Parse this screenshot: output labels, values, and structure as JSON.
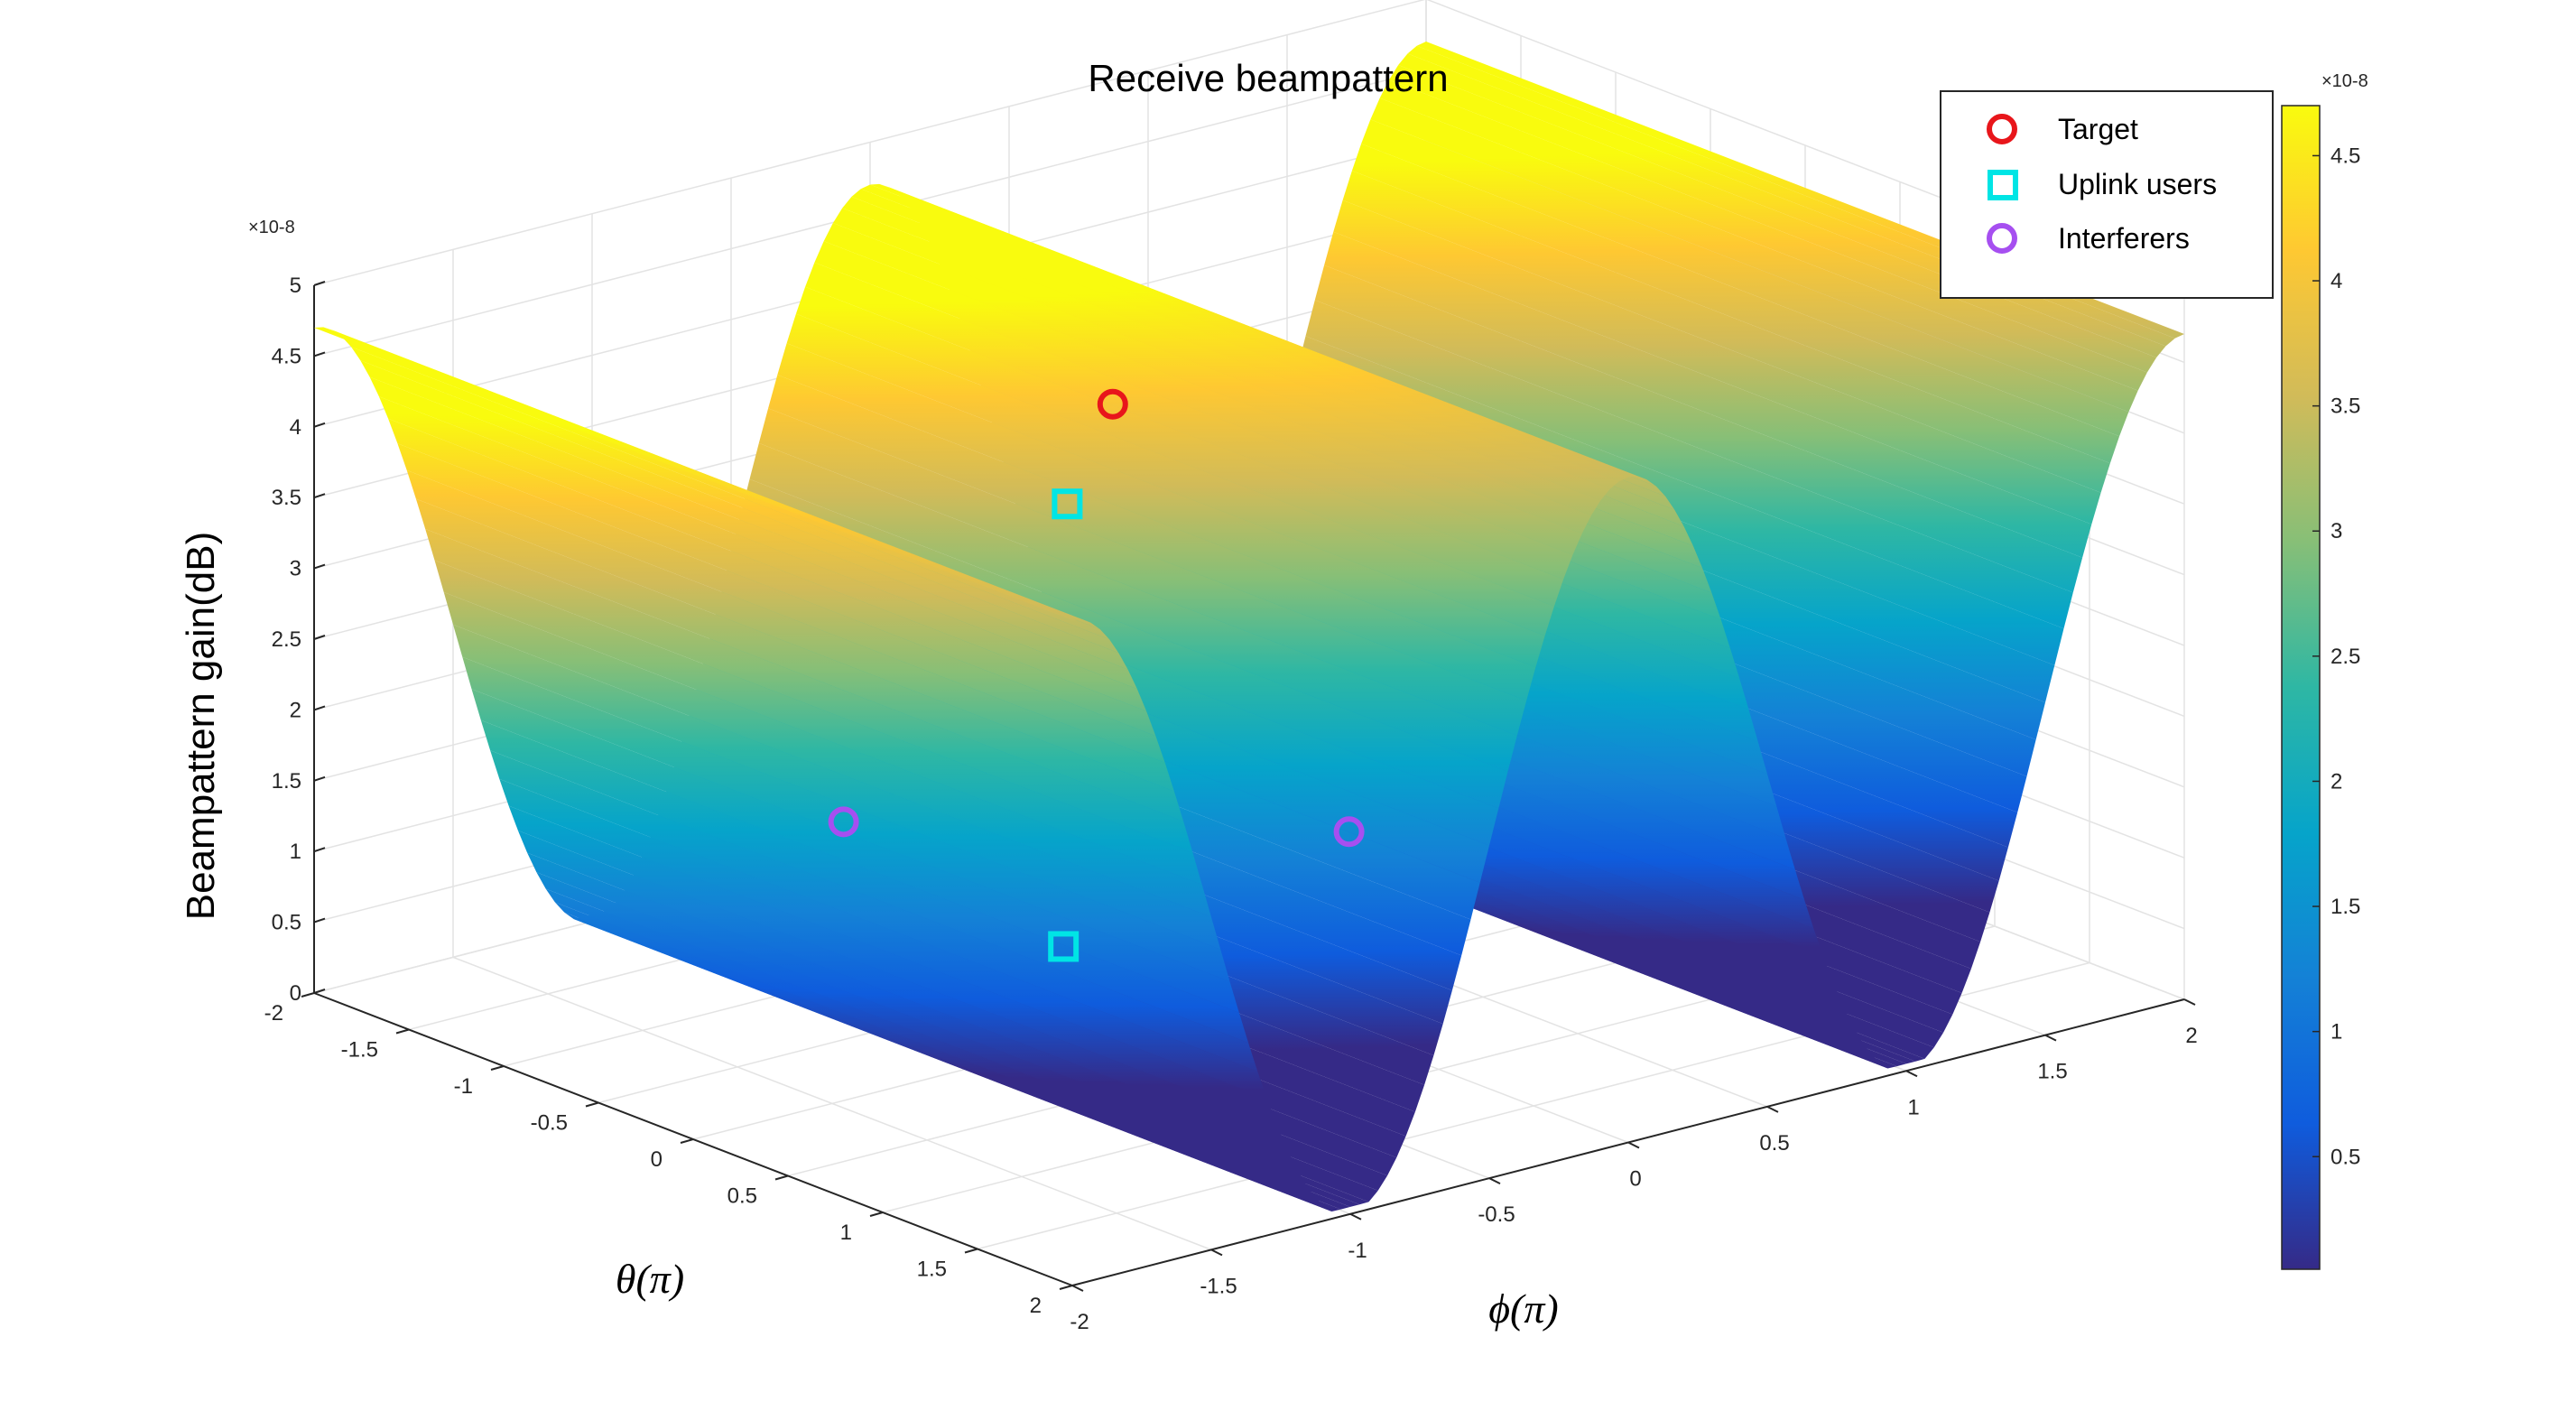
{
  "chart_data": {
    "type": "surface",
    "title": "Receive beampattern",
    "xlabel": "θ(π)",
    "ylabel": "ϕ(π)",
    "zlabel": "Beampattern gain(dB)",
    "xlim": [
      -2,
      2
    ],
    "ylim": [
      -2,
      2
    ],
    "zlim": [
      0,
      5e-08
    ],
    "x_ticks": [
      "-2",
      "-1.5",
      "-1",
      "-0.5",
      "0",
      "0.5",
      "1",
      "1.5",
      "2"
    ],
    "y_ticks": [
      "-2",
      "-1.5",
      "-1",
      "-0.5",
      "0",
      "0.5",
      "1",
      "1.5",
      "2"
    ],
    "z_ticks": [
      "0",
      "0.5",
      "1",
      "1.5",
      "2",
      "2.5",
      "3",
      "3.5",
      "4",
      "4.5",
      "5"
    ],
    "z_exponent": "×10-8",
    "grid": true,
    "surface": {
      "description_function": "gain = 4.7e-8 * (1 + cos(pi*phi)) / 2, constant along theta",
      "max": 4.7e-08,
      "min": 5e-10,
      "peaks_phi": [
        -2,
        0,
        2
      ],
      "troughs_phi": [
        -1,
        1
      ]
    },
    "markers": [
      {
        "series": "Target",
        "theta": -0.5,
        "phi": -0.15,
        "gain": 4e-08
      },
      {
        "series": "Uplink users",
        "theta": -0.3,
        "phi": -0.45,
        "gain": 3.55e-08
      },
      {
        "series": "Uplink users",
        "theta": 1.0,
        "phi": -1.35,
        "gain": 1.55e-08
      },
      {
        "series": "Interferers",
        "theta": 0.5,
        "phi": -1.8,
        "gain": 2.4e-08
      },
      {
        "series": "Interferers",
        "theta": -0.5,
        "phi": 0.7,
        "gain": 5.5e-09
      }
    ],
    "legend": {
      "placement": "top-right",
      "entries": [
        {
          "name": "Target",
          "marker": "circle",
          "color": "#e8161b"
        },
        {
          "name": "Uplink users",
          "marker": "square",
          "color": "#00e5e5"
        },
        {
          "name": "Interferers",
          "marker": "circle",
          "color": "#a64ff0"
        }
      ]
    },
    "colorbar": {
      "colormap": "parula",
      "ticks": [
        "0.5",
        "1",
        "1.5",
        "2",
        "2.5",
        "3",
        "3.5",
        "4",
        "4.5"
      ],
      "range": [
        0.05,
        4.7
      ],
      "exponent": "×10-8"
    }
  }
}
